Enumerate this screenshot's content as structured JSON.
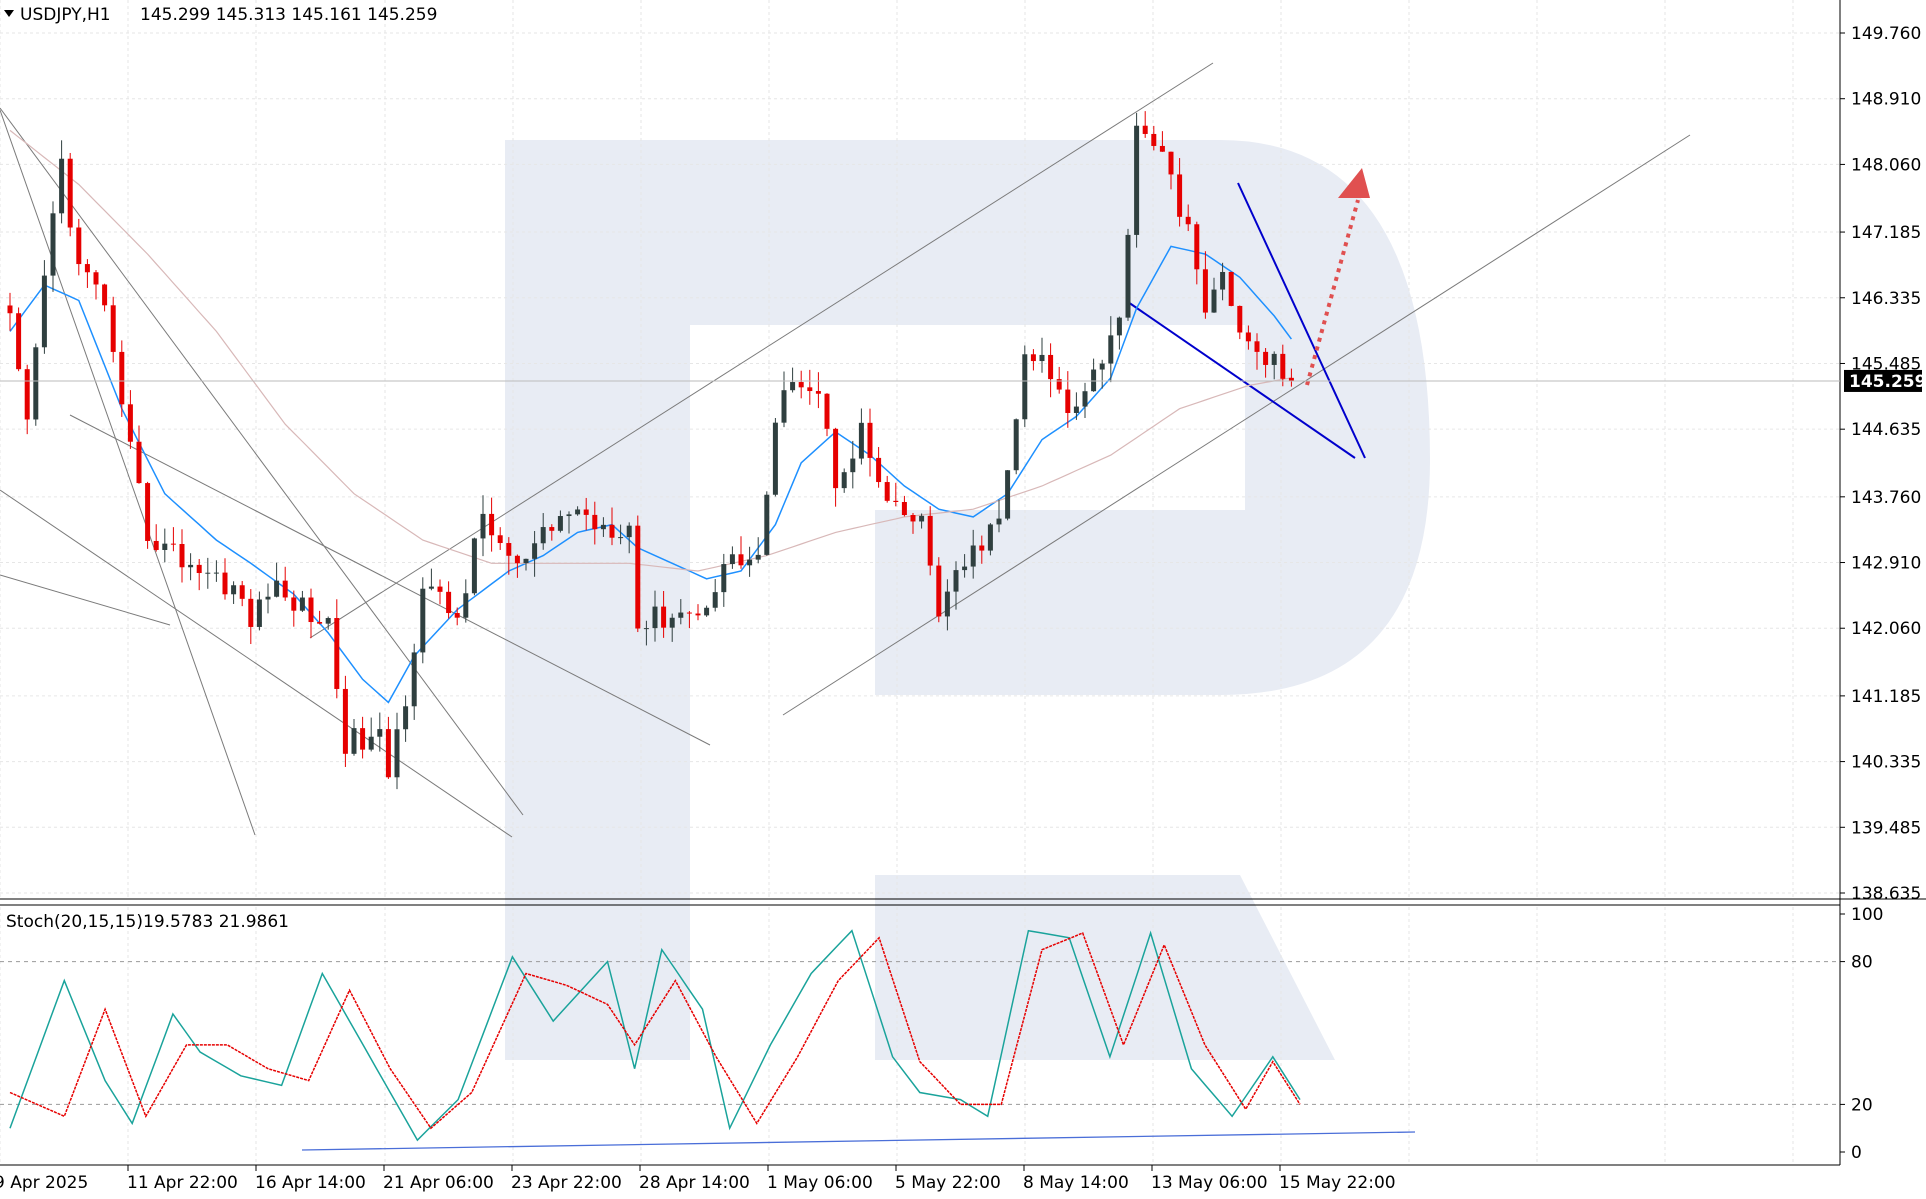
{
  "colors": {
    "bull": "#2f3f3f",
    "bear": "#e60000",
    "ma_fast": "#1e90ff",
    "ma_slow": "#d8b8b8",
    "stoch_main": "#1aa39b",
    "stoch_signal": "#e60000",
    "wedge": "#0000cc",
    "arrow": "#e05050",
    "channel": "#7a7a7a",
    "watermark": "#e8ecf4",
    "price_tag_bg": "#000000",
    "price_tag_text": "#ffffff"
  },
  "header": {
    "symbol": "USDJPY,H1",
    "ohlc": "145.299 145.313 145.161 145.259"
  },
  "stoch_header": {
    "label": "Stoch(20,15,15)",
    "values": "19.5783 21.9861"
  },
  "price_axis": {
    "ticks": [
      "149.760",
      "148.910",
      "148.060",
      "147.185",
      "146.335",
      "145.485",
      "144.635",
      "143.760",
      "142.910",
      "142.060",
      "141.185",
      "140.335",
      "139.485",
      "138.635"
    ],
    "current_price": "145.259"
  },
  "stoch_axis": {
    "ticks": [
      "100",
      "80",
      "20",
      "0"
    ]
  },
  "time_axis": {
    "labels": [
      "9 Apr 2025",
      "11 Apr 22:00",
      "16 Apr 14:00",
      "21 Apr 06:00",
      "23 Apr 22:00",
      "28 Apr 14:00",
      "1 May 06:00",
      "5 May 22:00",
      "8 May 14:00",
      "13 May 06:00",
      "15 May 22:00"
    ]
  },
  "chart_data": [
    {
      "type": "candlestick",
      "title": "USDJPY,H1",
      "ylim": [
        138.635,
        149.76
      ],
      "last": {
        "open": 145.299,
        "high": 145.313,
        "low": 145.161,
        "close": 145.259
      },
      "x": [
        "9 Apr 2025",
        "11 Apr 22:00",
        "16 Apr 14:00",
        "21 Apr 06:00",
        "23 Apr 22:00",
        "28 Apr 14:00",
        "1 May 06:00",
        "5 May 22:00",
        "8 May 14:00",
        "13 May 06:00",
        "15 May 22:00"
      ],
      "close_path": [
        [
          0,
          146.0
        ],
        [
          2,
          144.6
        ],
        [
          4,
          146.6
        ],
        [
          6,
          148.1
        ],
        [
          8,
          146.7
        ],
        [
          11,
          146.3
        ],
        [
          13,
          144.8
        ],
        [
          16,
          143.3
        ],
        [
          18,
          143.1
        ],
        [
          21,
          142.9
        ],
        [
          26,
          142.6
        ],
        [
          28,
          142.1
        ],
        [
          30,
          142.6
        ],
        [
          33,
          142.4
        ],
        [
          37,
          142.1
        ],
        [
          39,
          140.6
        ],
        [
          43,
          140.6
        ],
        [
          44,
          140.2
        ],
        [
          46,
          141.2
        ],
        [
          48,
          142.6
        ],
        [
          52,
          142.2
        ],
        [
          55,
          143.5
        ],
        [
          59,
          142.8
        ],
        [
          62,
          143.2
        ],
        [
          65,
          143.6
        ],
        [
          69,
          143.4
        ],
        [
          72,
          143.4
        ],
        [
          73,
          142.1
        ],
        [
          78,
          142.3
        ],
        [
          80,
          142.2
        ],
        [
          83,
          142.9
        ],
        [
          87,
          143.0
        ],
        [
          89,
          144.6
        ],
        [
          91,
          145.4
        ],
        [
          94,
          145.1
        ],
        [
          96,
          144.0
        ],
        [
          99,
          144.6
        ],
        [
          102,
          143.6
        ],
        [
          106,
          143.4
        ],
        [
          108,
          142.3
        ],
        [
          113,
          143.2
        ],
        [
          115,
          143.4
        ],
        [
          118,
          145.5
        ],
        [
          120,
          145.5
        ],
        [
          123,
          144.9
        ],
        [
          126,
          145.4
        ],
        [
          129,
          146.0
        ],
        [
          131,
          148.6
        ],
        [
          133,
          148.4
        ],
        [
          135,
          147.8
        ],
        [
          137,
          147.3
        ],
        [
          139,
          146.0
        ],
        [
          141,
          146.8
        ],
        [
          143,
          145.8
        ],
        [
          145,
          145.6
        ],
        [
          147,
          145.5
        ],
        [
          149,
          145.26
        ]
      ],
      "moving_averages": [
        {
          "name": "MA fast",
          "path": [
            [
              0,
              145.9
            ],
            [
              4,
              146.5
            ],
            [
              8,
              146.3
            ],
            [
              13,
              144.9
            ],
            [
              18,
              143.8
            ],
            [
              24,
              143.2
            ],
            [
              28,
              142.9
            ],
            [
              33,
              142.5
            ],
            [
              37,
              142.0
            ],
            [
              41,
              141.4
            ],
            [
              44,
              141.1
            ],
            [
              47,
              141.7
            ],
            [
              52,
              142.3
            ],
            [
              58,
              142.8
            ],
            [
              62,
              143.0
            ],
            [
              66,
              143.3
            ],
            [
              70,
              143.4
            ],
            [
              73,
              143.1
            ],
            [
              77,
              142.9
            ],
            [
              81,
              142.7
            ],
            [
              85,
              142.8
            ],
            [
              89,
              143.4
            ],
            [
              92,
              144.2
            ],
            [
              96,
              144.6
            ],
            [
              100,
              144.3
            ],
            [
              104,
              143.9
            ],
            [
              108,
              143.6
            ],
            [
              112,
              143.5
            ],
            [
              116,
              143.8
            ],
            [
              120,
              144.5
            ],
            [
              124,
              144.8
            ],
            [
              128,
              145.3
            ],
            [
              131,
              146.2
            ],
            [
              135,
              147.0
            ],
            [
              139,
              146.9
            ],
            [
              143,
              146.6
            ],
            [
              147,
              146.1
            ],
            [
              149,
              145.8
            ]
          ]
        },
        {
          "name": "MA slow",
          "path": [
            [
              0,
              148.5
            ],
            [
              8,
              147.8
            ],
            [
              16,
              146.9
            ],
            [
              24,
              145.9
            ],
            [
              32,
              144.7
            ],
            [
              40,
              143.8
            ],
            [
              48,
              143.2
            ],
            [
              56,
              142.9
            ],
            [
              64,
              142.9
            ],
            [
              72,
              142.9
            ],
            [
              80,
              142.8
            ],
            [
              88,
              143.0
            ],
            [
              96,
              143.3
            ],
            [
              104,
              143.5
            ],
            [
              112,
              143.6
            ],
            [
              120,
              143.9
            ],
            [
              128,
              144.3
            ],
            [
              136,
              144.9
            ],
            [
              144,
              145.2
            ],
            [
              149,
              145.3
            ]
          ]
        }
      ],
      "trend_lines": [
        "descending channel (lower bound)",
        "descending channel (upper bound)",
        "ascending channel (lower bound)",
        "ascending channel (upper bound)",
        "falling wedge",
        "dotted forecast arrow upward"
      ]
    },
    {
      "type": "line",
      "title": "Stoch(20,15,15)",
      "ylim": [
        0,
        100
      ],
      "levels": [
        80,
        20
      ],
      "series": [
        {
          "name": "Main",
          "last": 19.5783,
          "path": [
            [
              0,
              10
            ],
            [
              4,
              72
            ],
            [
              7,
              30
            ],
            [
              9,
              12
            ],
            [
              12,
              58
            ],
            [
              14,
              42
            ],
            [
              17,
              32
            ],
            [
              20,
              28
            ],
            [
              23,
              75
            ],
            [
              26,
              45
            ],
            [
              30,
              5
            ],
            [
              33,
              22
            ],
            [
              37,
              82
            ],
            [
              40,
              55
            ],
            [
              44,
              80
            ],
            [
              46,
              35
            ],
            [
              48,
              85
            ],
            [
              51,
              60
            ],
            [
              53,
              10
            ],
            [
              56,
              45
            ],
            [
              59,
              75
            ],
            [
              62,
              93
            ],
            [
              65,
              40
            ],
            [
              67,
              25
            ],
            [
              70,
              22
            ],
            [
              72,
              15
            ],
            [
              75,
              93
            ],
            [
              78,
              90
            ],
            [
              81,
              40
            ],
            [
              84,
              92
            ],
            [
              87,
              35
            ],
            [
              90,
              15
            ],
            [
              93,
              40
            ],
            [
              95,
              22
            ]
          ]
        },
        {
          "name": "Signal",
          "last": 21.9861,
          "path": [
            [
              0,
              25
            ],
            [
              4,
              15
            ],
            [
              7,
              60
            ],
            [
              10,
              15
            ],
            [
              13,
              45
            ],
            [
              16,
              45
            ],
            [
              19,
              35
            ],
            [
              22,
              30
            ],
            [
              25,
              68
            ],
            [
              28,
              35
            ],
            [
              31,
              10
            ],
            [
              34,
              25
            ],
            [
              38,
              75
            ],
            [
              41,
              70
            ],
            [
              44,
              62
            ],
            [
              46,
              45
            ],
            [
              49,
              72
            ],
            [
              52,
              40
            ],
            [
              55,
              12
            ],
            [
              58,
              40
            ],
            [
              61,
              72
            ],
            [
              64,
              90
            ],
            [
              67,
              38
            ],
            [
              70,
              20
            ],
            [
              73,
              20
            ],
            [
              76,
              85
            ],
            [
              79,
              92
            ],
            [
              82,
              45
            ],
            [
              85,
              87
            ],
            [
              88,
              45
            ],
            [
              91,
              18
            ],
            [
              93,
              38
            ],
            [
              95,
              20
            ]
          ]
        }
      ]
    }
  ]
}
